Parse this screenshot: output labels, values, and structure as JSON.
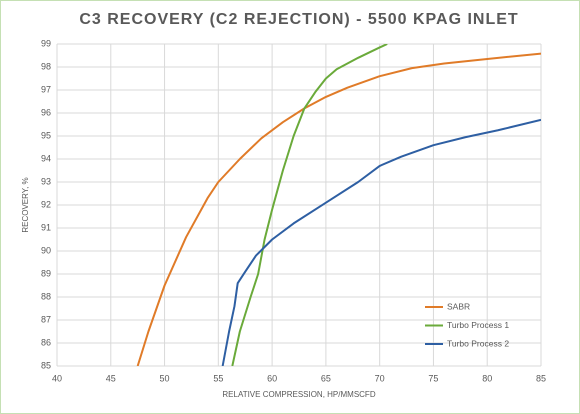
{
  "chart_data": {
    "type": "line",
    "title": "C3 RECOVERY (C2 REJECTION) - 5500 KPAG INLET",
    "x_label": "RELATIVE COMPRESSION, HP/MMSCFD",
    "y_label": "RECOVERY, %",
    "xlim": [
      40,
      85
    ],
    "xticks": [
      40,
      45,
      50,
      55,
      60,
      65,
      70,
      75,
      80,
      85
    ],
    "ylim": [
      85,
      99
    ],
    "yticks": [
      85,
      86,
      87,
      88,
      89,
      90,
      91,
      92,
      93,
      94,
      95,
      96,
      97,
      98,
      99
    ],
    "grid": true,
    "legend": "lower right",
    "series": [
      {
        "name": "SABR",
        "color": "#e07b28",
        "x": [
          47.5,
          48.5,
          50,
          52,
          54,
          55,
          57,
          59,
          61,
          63,
          65,
          67,
          70,
          73,
          76,
          80,
          85
        ],
        "values": [
          85,
          86.5,
          88.5,
          90.6,
          92.3,
          93,
          94,
          94.9,
          95.6,
          96.2,
          96.7,
          97.1,
          97.6,
          97.95,
          98.15,
          98.35,
          98.58
        ]
      },
      {
        "name": "Turbo Process 1",
        "color": "#6aaa3a",
        "x": [
          56.3,
          57,
          58,
          58.7,
          59.3,
          60,
          61,
          62,
          63,
          64,
          65,
          66,
          68,
          70,
          70.7
        ],
        "values": [
          85,
          86.5,
          88,
          89,
          90.5,
          91.8,
          93.5,
          95,
          96.2,
          96.9,
          97.5,
          97.9,
          98.4,
          98.85,
          99
        ]
      },
      {
        "name": "Turbo Process 2",
        "color": "#2e5fa3",
        "x": [
          55.4,
          56,
          56.5,
          56.8,
          57.5,
          58.5,
          60,
          62,
          65,
          68,
          70,
          72,
          75,
          78,
          81,
          85
        ],
        "values": [
          85,
          86.5,
          87.6,
          88.6,
          89.1,
          89.8,
          90.5,
          91.2,
          92.1,
          93,
          93.7,
          94.1,
          94.6,
          94.95,
          95.25,
          95.7
        ]
      }
    ]
  }
}
